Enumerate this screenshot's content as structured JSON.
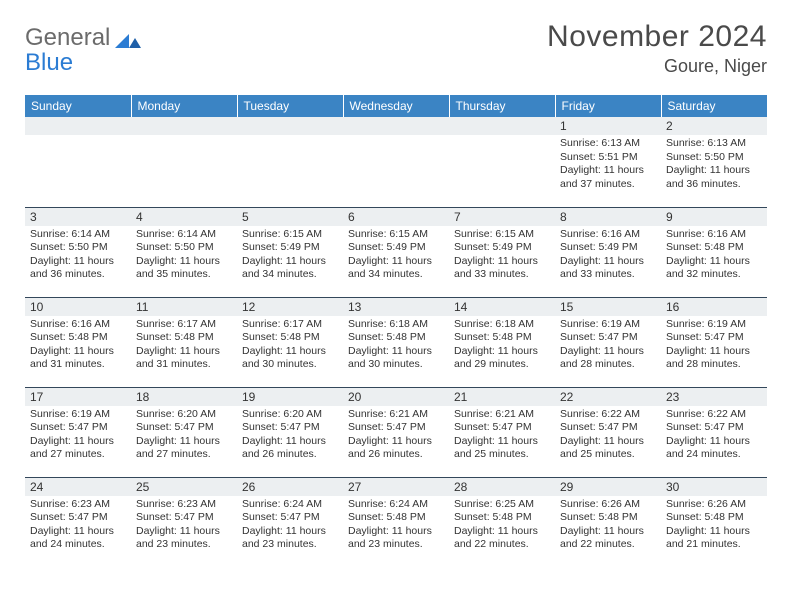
{
  "logo": {
    "line1": "General",
    "line2": "Blue"
  },
  "colors": {
    "header_bg": "#3b84c4",
    "header_text": "#ffffff",
    "daynum_bg": "#eceff1",
    "border": "#33475b",
    "text": "#333333",
    "logo_gray": "#6b6b6b",
    "logo_blue": "#2b7cd3",
    "title": "#4a4a4a"
  },
  "title": "November 2024",
  "location": "Goure, Niger",
  "weekdays": [
    "Sunday",
    "Monday",
    "Tuesday",
    "Wednesday",
    "Thursday",
    "Friday",
    "Saturday"
  ],
  "weeks": [
    [
      {
        "n": "",
        "sunrise": "",
        "sunset": "",
        "daylight": ""
      },
      {
        "n": "",
        "sunrise": "",
        "sunset": "",
        "daylight": ""
      },
      {
        "n": "",
        "sunrise": "",
        "sunset": "",
        "daylight": ""
      },
      {
        "n": "",
        "sunrise": "",
        "sunset": "",
        "daylight": ""
      },
      {
        "n": "",
        "sunrise": "",
        "sunset": "",
        "daylight": ""
      },
      {
        "n": "1",
        "sunrise": "Sunrise: 6:13 AM",
        "sunset": "Sunset: 5:51 PM",
        "daylight": "Daylight: 11 hours and 37 minutes."
      },
      {
        "n": "2",
        "sunrise": "Sunrise: 6:13 AM",
        "sunset": "Sunset: 5:50 PM",
        "daylight": "Daylight: 11 hours and 36 minutes."
      }
    ],
    [
      {
        "n": "3",
        "sunrise": "Sunrise: 6:14 AM",
        "sunset": "Sunset: 5:50 PM",
        "daylight": "Daylight: 11 hours and 36 minutes."
      },
      {
        "n": "4",
        "sunrise": "Sunrise: 6:14 AM",
        "sunset": "Sunset: 5:50 PM",
        "daylight": "Daylight: 11 hours and 35 minutes."
      },
      {
        "n": "5",
        "sunrise": "Sunrise: 6:15 AM",
        "sunset": "Sunset: 5:49 PM",
        "daylight": "Daylight: 11 hours and 34 minutes."
      },
      {
        "n": "6",
        "sunrise": "Sunrise: 6:15 AM",
        "sunset": "Sunset: 5:49 PM",
        "daylight": "Daylight: 11 hours and 34 minutes."
      },
      {
        "n": "7",
        "sunrise": "Sunrise: 6:15 AM",
        "sunset": "Sunset: 5:49 PM",
        "daylight": "Daylight: 11 hours and 33 minutes."
      },
      {
        "n": "8",
        "sunrise": "Sunrise: 6:16 AM",
        "sunset": "Sunset: 5:49 PM",
        "daylight": "Daylight: 11 hours and 33 minutes."
      },
      {
        "n": "9",
        "sunrise": "Sunrise: 6:16 AM",
        "sunset": "Sunset: 5:48 PM",
        "daylight": "Daylight: 11 hours and 32 minutes."
      }
    ],
    [
      {
        "n": "10",
        "sunrise": "Sunrise: 6:16 AM",
        "sunset": "Sunset: 5:48 PM",
        "daylight": "Daylight: 11 hours and 31 minutes."
      },
      {
        "n": "11",
        "sunrise": "Sunrise: 6:17 AM",
        "sunset": "Sunset: 5:48 PM",
        "daylight": "Daylight: 11 hours and 31 minutes."
      },
      {
        "n": "12",
        "sunrise": "Sunrise: 6:17 AM",
        "sunset": "Sunset: 5:48 PM",
        "daylight": "Daylight: 11 hours and 30 minutes."
      },
      {
        "n": "13",
        "sunrise": "Sunrise: 6:18 AM",
        "sunset": "Sunset: 5:48 PM",
        "daylight": "Daylight: 11 hours and 30 minutes."
      },
      {
        "n": "14",
        "sunrise": "Sunrise: 6:18 AM",
        "sunset": "Sunset: 5:48 PM",
        "daylight": "Daylight: 11 hours and 29 minutes."
      },
      {
        "n": "15",
        "sunrise": "Sunrise: 6:19 AM",
        "sunset": "Sunset: 5:47 PM",
        "daylight": "Daylight: 11 hours and 28 minutes."
      },
      {
        "n": "16",
        "sunrise": "Sunrise: 6:19 AM",
        "sunset": "Sunset: 5:47 PM",
        "daylight": "Daylight: 11 hours and 28 minutes."
      }
    ],
    [
      {
        "n": "17",
        "sunrise": "Sunrise: 6:19 AM",
        "sunset": "Sunset: 5:47 PM",
        "daylight": "Daylight: 11 hours and 27 minutes."
      },
      {
        "n": "18",
        "sunrise": "Sunrise: 6:20 AM",
        "sunset": "Sunset: 5:47 PM",
        "daylight": "Daylight: 11 hours and 27 minutes."
      },
      {
        "n": "19",
        "sunrise": "Sunrise: 6:20 AM",
        "sunset": "Sunset: 5:47 PM",
        "daylight": "Daylight: 11 hours and 26 minutes."
      },
      {
        "n": "20",
        "sunrise": "Sunrise: 6:21 AM",
        "sunset": "Sunset: 5:47 PM",
        "daylight": "Daylight: 11 hours and 26 minutes."
      },
      {
        "n": "21",
        "sunrise": "Sunrise: 6:21 AM",
        "sunset": "Sunset: 5:47 PM",
        "daylight": "Daylight: 11 hours and 25 minutes."
      },
      {
        "n": "22",
        "sunrise": "Sunrise: 6:22 AM",
        "sunset": "Sunset: 5:47 PM",
        "daylight": "Daylight: 11 hours and 25 minutes."
      },
      {
        "n": "23",
        "sunrise": "Sunrise: 6:22 AM",
        "sunset": "Sunset: 5:47 PM",
        "daylight": "Daylight: 11 hours and 24 minutes."
      }
    ],
    [
      {
        "n": "24",
        "sunrise": "Sunrise: 6:23 AM",
        "sunset": "Sunset: 5:47 PM",
        "daylight": "Daylight: 11 hours and 24 minutes."
      },
      {
        "n": "25",
        "sunrise": "Sunrise: 6:23 AM",
        "sunset": "Sunset: 5:47 PM",
        "daylight": "Daylight: 11 hours and 23 minutes."
      },
      {
        "n": "26",
        "sunrise": "Sunrise: 6:24 AM",
        "sunset": "Sunset: 5:47 PM",
        "daylight": "Daylight: 11 hours and 23 minutes."
      },
      {
        "n": "27",
        "sunrise": "Sunrise: 6:24 AM",
        "sunset": "Sunset: 5:48 PM",
        "daylight": "Daylight: 11 hours and 23 minutes."
      },
      {
        "n": "28",
        "sunrise": "Sunrise: 6:25 AM",
        "sunset": "Sunset: 5:48 PM",
        "daylight": "Daylight: 11 hours and 22 minutes."
      },
      {
        "n": "29",
        "sunrise": "Sunrise: 6:26 AM",
        "sunset": "Sunset: 5:48 PM",
        "daylight": "Daylight: 11 hours and 22 minutes."
      },
      {
        "n": "30",
        "sunrise": "Sunrise: 6:26 AM",
        "sunset": "Sunset: 5:48 PM",
        "daylight": "Daylight: 11 hours and 21 minutes."
      }
    ]
  ]
}
